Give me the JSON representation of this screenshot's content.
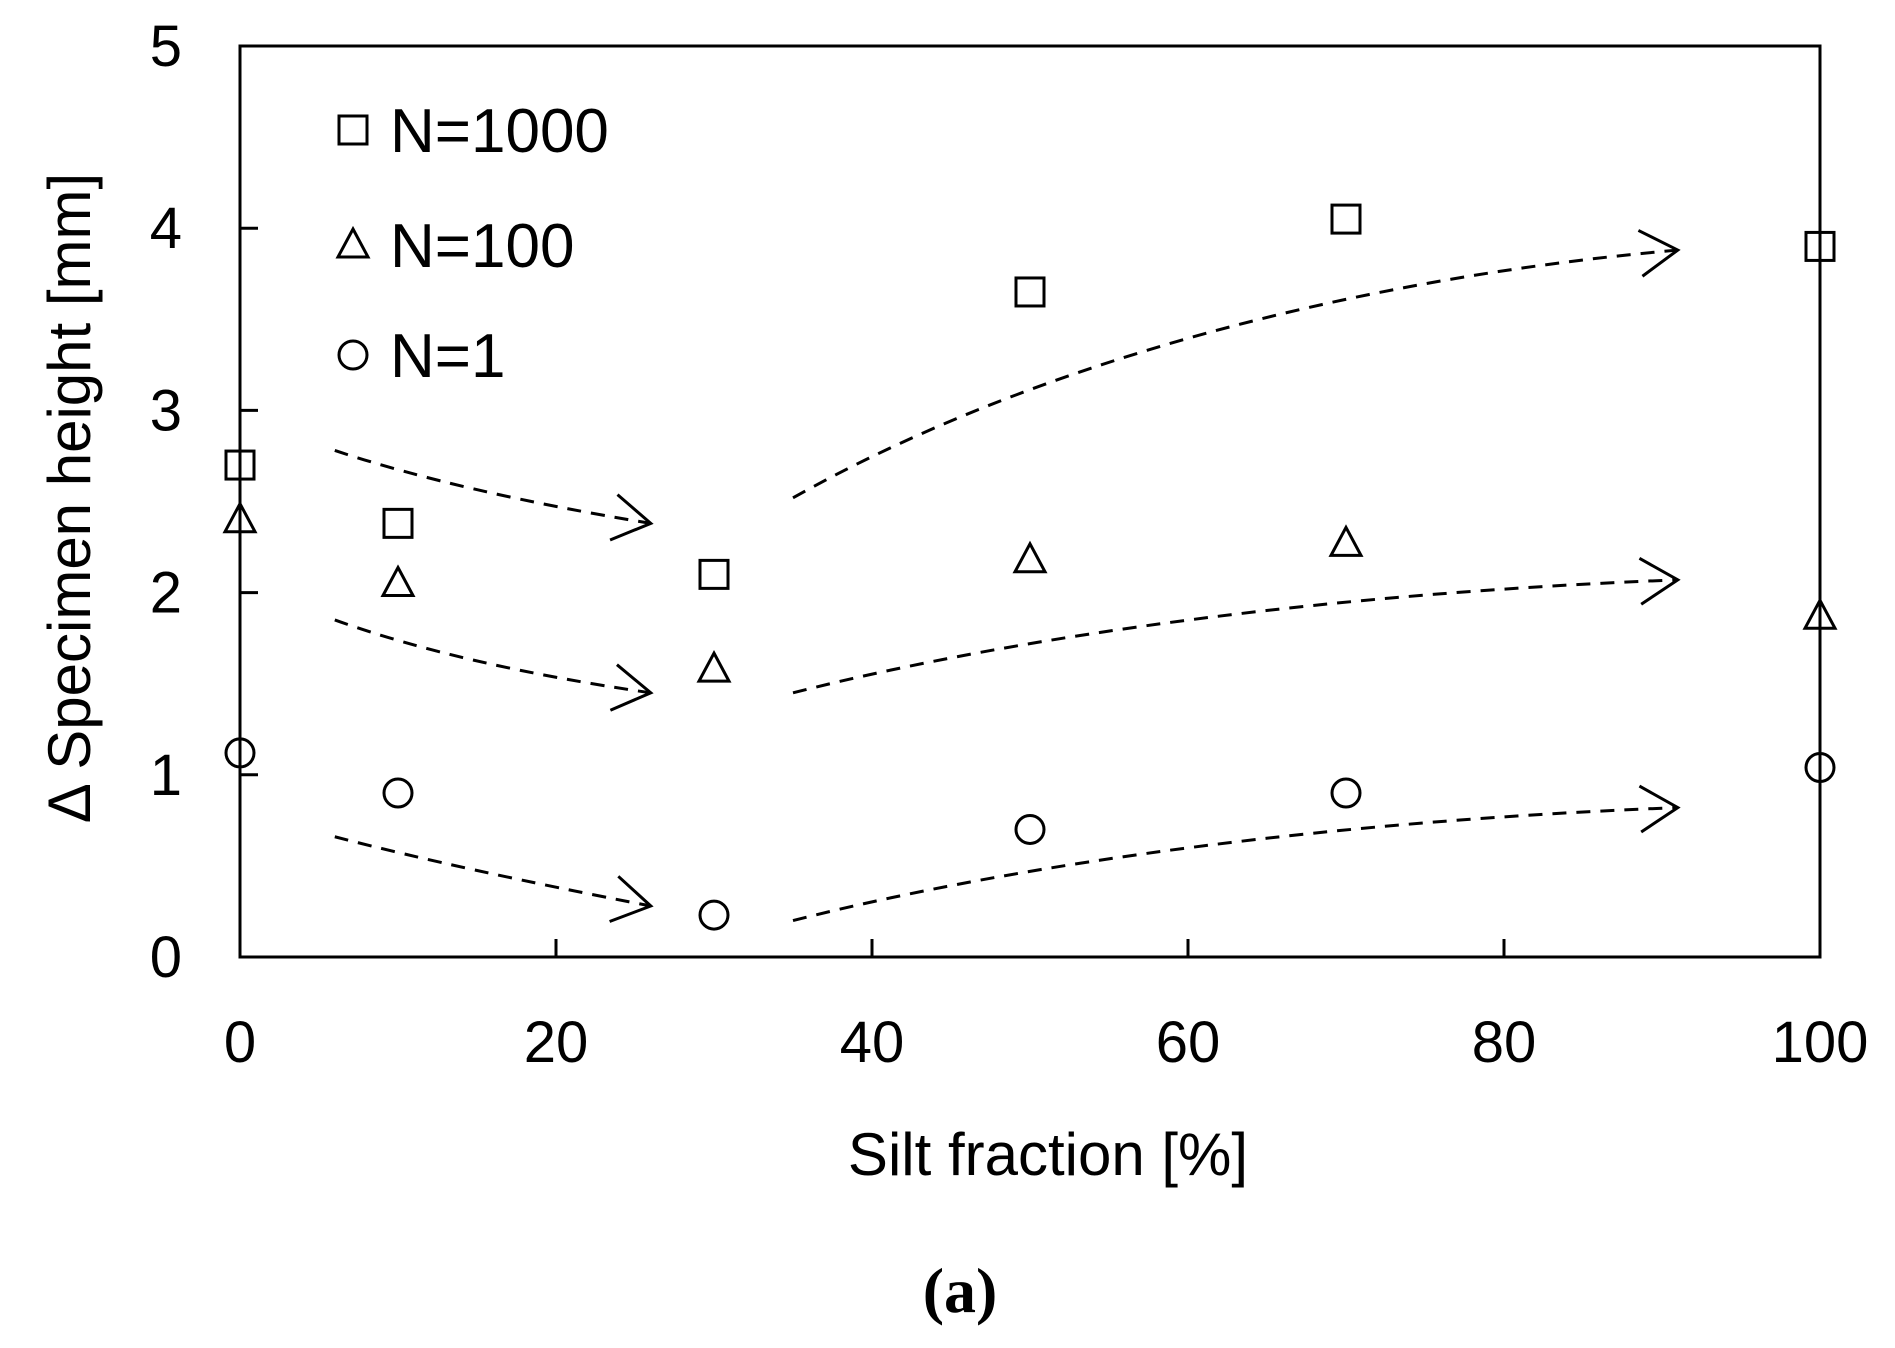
{
  "chart_data": {
    "type": "scatter",
    "xlabel": "Silt fraction [%]",
    "ylabel": "Δ Specimen height [mm]",
    "xlim": [
      0,
      100
    ],
    "ylim": [
      0,
      5
    ],
    "xticks": [
      "0",
      "20",
      "40",
      "60",
      "80",
      "100"
    ],
    "yticks": [
      "0",
      "1",
      "2",
      "3",
      "4",
      "5"
    ],
    "grid": false,
    "legend": "top-left",
    "panel_label": "(a)",
    "series": [
      {
        "name": "N=1000",
        "marker": "square",
        "x": [
          0,
          10,
          30,
          50,
          70,
          100
        ],
        "y": [
          2.7,
          2.38,
          2.1,
          3.65,
          4.05,
          3.9
        ]
      },
      {
        "name": "N=100",
        "marker": "triangle",
        "x": [
          0,
          10,
          30,
          50,
          70,
          100
        ],
        "y": [
          2.4,
          2.05,
          1.58,
          2.18,
          2.27,
          1.87
        ]
      },
      {
        "name": "N=1",
        "marker": "circle",
        "x": [
          0,
          10,
          30,
          50,
          70,
          100
        ],
        "y": [
          1.12,
          0.9,
          0.23,
          0.7,
          0.9,
          1.04
        ]
      }
    ],
    "trend_arrows": [
      {
        "series": "N=1000",
        "points": [
          [
            6,
            2.78
          ],
          [
            14,
            2.55
          ],
          [
            26,
            2.38
          ]
        ]
      },
      {
        "series": "N=1000",
        "points": [
          [
            35,
            2.52
          ],
          [
            50,
            3.25
          ],
          [
            70,
            3.72
          ],
          [
            91,
            3.88
          ]
        ]
      },
      {
        "series": "N=100",
        "points": [
          [
            6,
            1.85
          ],
          [
            14,
            1.6
          ],
          [
            26,
            1.45
          ]
        ]
      },
      {
        "series": "N=100",
        "points": [
          [
            35,
            1.45
          ],
          [
            50,
            1.78
          ],
          [
            70,
            2.0
          ],
          [
            91,
            2.07
          ]
        ]
      },
      {
        "series": "N=1",
        "points": [
          [
            6,
            0.66
          ],
          [
            14,
            0.48
          ],
          [
            26,
            0.28
          ]
        ]
      },
      {
        "series": "N=1",
        "points": [
          [
            35,
            0.2
          ],
          [
            50,
            0.53
          ],
          [
            70,
            0.75
          ],
          [
            91,
            0.82
          ]
        ]
      }
    ]
  }
}
